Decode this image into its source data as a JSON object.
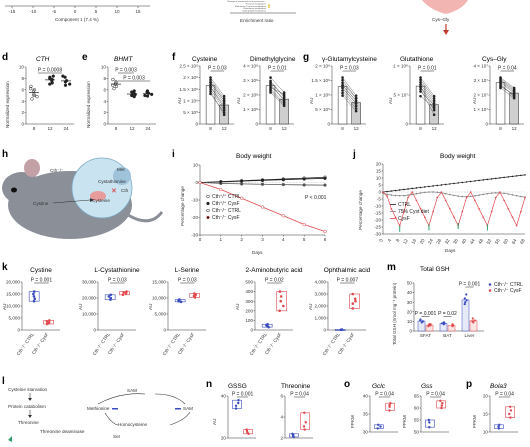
{
  "figure": {
    "top_strip": {
      "component_ticks": [
        "-15",
        "-10",
        "-5",
        "0",
        "5",
        "10",
        "15"
      ],
      "component_label": "Component 1 (7.4 %)",
      "pathways": [
        "Neomycin, kanamycin and gentamicin...",
        "Fructose metabolism",
        "Methionine 2-amino metabolism",
        "Glutathione metabolism",
        "Sphingolipid metabolism"
      ],
      "enrichment_label": "Enrichment ratio",
      "cys_gly_label": "Cys–Gly"
    },
    "panels": {
      "d": {
        "label": "d",
        "title": "CTH",
        "ylabel": "Normalized expression",
        "p": "P = 0.0008",
        "x": [
          "8",
          "12",
          "24"
        ],
        "yticks": [
          "0",
          "2",
          "4",
          "6",
          "8",
          "10"
        ]
      },
      "e": {
        "label": "e",
        "title": "BHMT",
        "ylabel": "Normalized expression",
        "p1": "P = 0.003",
        "p2": "P = 0.003",
        "x": [
          "8",
          "12",
          "24"
        ],
        "yticks": [
          "0",
          "2",
          "4",
          "6",
          "8",
          "10"
        ]
      },
      "f": {
        "label": "f",
        "t1": "Cysteine",
        "p1": "P = 0.03",
        "t2": "Dimethylglycine",
        "p2": "P = 0.01",
        "ylabel": "AU",
        "x": [
          "8",
          "12"
        ],
        "yt1": [
          "0",
          "5 × 10⁵",
          "1 × 10⁶",
          "1.5 × 10⁶",
          "2 × 10⁶",
          "2.5 × 10⁶"
        ],
        "yt2": [
          "0",
          "1 × 10⁸",
          "2 × 10⁸",
          "3 × 10⁸",
          "4 × 10⁸"
        ]
      },
      "g": {
        "label": "g",
        "t1": "γ-Glutamylcysteine",
        "p1": "P = 0.03",
        "t2": "Glutathione",
        "p2": "P = 0.01",
        "t3": "Cys–Gly",
        "p3": "P = 0.04",
        "ylabel": "AU",
        "x": [
          "8",
          "12"
        ],
        "yt1": [
          "0",
          "5 × 10⁵",
          "1 × 10⁶",
          "1.5 × 10⁶",
          "2 × 10⁶"
        ],
        "yt2": [
          "0",
          "5 × 10⁷",
          "1 × 10⁸"
        ],
        "yt3": [
          "0",
          "1 × 10⁷",
          "2 × 10⁷",
          "3 × 10⁷",
          "4 × 10⁷"
        ]
      },
      "h": {
        "label": "h",
        "cth": "Cth⁻/⁻",
        "met": "Met",
        "cystathionine": "Cystathionine",
        "cth_x": "Cth",
        "cysteine": "Cysteine",
        "cystine": "Cystine"
      },
      "i": {
        "label": "i",
        "title": "Body weight",
        "ylabel": "Percentage change",
        "xlabel": "Days",
        "p": "P < 0.001",
        "xticks": [
          "0",
          "1",
          "2",
          "3",
          "4",
          "5",
          "6"
        ],
        "yticks": [
          "-30",
          "-20",
          "-10",
          "0",
          "10"
        ],
        "legend": [
          "Cth⁺/⁺ CTRL",
          "Cth⁺/⁺ CysF",
          "Cth⁻/⁻ CTRL",
          "Cth⁻/⁻ CysF"
        ]
      },
      "j": {
        "label": "j",
        "title": "Body weight",
        "ylabel": "Percentage change",
        "xlabel": "Days",
        "yticks": [
          "-30",
          "-25",
          "-20",
          "-15",
          "-10",
          "-5",
          "0",
          "5",
          "10",
          "15",
          "20"
        ],
        "xticks": [
          "0",
          "4",
          "8",
          "12",
          "16",
          "20",
          "24",
          "28",
          "32",
          "36",
          "40",
          "44",
          "48",
          "52",
          "56",
          "60",
          "64",
          "68"
        ],
        "legend": [
          "CTRL",
          "75% Cyst diet",
          "CysF"
        ]
      },
      "k": {
        "label": "k",
        "ylabel": "AU",
        "xlabels": [
          "Cth⁻/⁻ CTRL",
          "Cth⁻/⁻ CysF"
        ],
        "sub": [
          {
            "title": "Cystine",
            "p": "P = 0.001",
            "yticks": [
              "0",
              "5,000",
              "10,000",
              "15,000",
              "20,000"
            ]
          },
          {
            "title": "L-Cystathionine",
            "p": "P = 0.03",
            "yticks": [
              "0",
              "10,000",
              "20,000",
              "30,000"
            ]
          },
          {
            "title": "L-Serine",
            "p": "P = 0.03",
            "yticks": [
              "0",
              "5,000",
              "10,000",
              "15,000"
            ]
          },
          {
            "title": "2-Aminobutyric acid",
            "p": "P = 0.02",
            "yticks": [
              "0",
              "100",
              "200",
              "300",
              "400",
              "500"
            ]
          },
          {
            "title": "Ophthalmic acid",
            "p": "P = 0.007",
            "yticks": [
              "0",
              "1,000",
              "2,000",
              "3,000",
              "4,000"
            ]
          }
        ]
      },
      "m": {
        "label": "m",
        "title": "Total GSH",
        "ylabel": "Total GSH (nmol mg⁻¹ protein)",
        "p": [
          "P = 0.001",
          "P = 0.02",
          "P = 0.001"
        ],
        "groups": [
          "SFAT",
          "BAT",
          "Liver"
        ],
        "yticks": [
          "0",
          "10",
          "20",
          "30",
          "40",
          "50"
        ],
        "legend": [
          "Cth⁻/⁻ CTRL",
          "Cth⁻/⁻ CysF"
        ]
      },
      "l": {
        "label": "l",
        "starvation": "Cysteine starvation",
        "catabolism": "Protein catabolism",
        "threonine": "Threonine",
        "deaminase": "Threonine deaminase",
        "sam": "SAM",
        "methionine": "Methionine",
        "homocysteine": "Homocysteine",
        "ser": "Ser"
      },
      "n": {
        "label": "n",
        "t1": "GSSG",
        "p1": "P = 0.001",
        "t2": "Threonine",
        "p2": "P = 0.04",
        "ylabel": "AU",
        "yt1": [
          "20",
          "40"
        ],
        "yt2": [
          "6",
          "4",
          "2"
        ]
      },
      "o": {
        "label": "o",
        "t1": "Gclc",
        "p1": "P = 0.04",
        "t2": "Gss",
        "p2": "P = 0.04",
        "ylabel": "FPKM",
        "yt1": [
          "40",
          "35",
          "30"
        ],
        "yt2": [
          "65",
          "60",
          "55",
          "50"
        ]
      },
      "p": {
        "label": "p",
        "t1": "Bola3",
        "p1": "P = 0.04",
        "ylabel": "FPKM",
        "yt1": [
          "20",
          "15",
          "10"
        ]
      }
    },
    "colors": {
      "ctrl": "#3b4cc0",
      "cysf": "#e0484d",
      "black": "#222222",
      "gray": "#999999",
      "green": "#2e9e6b",
      "pink": "#f0a7a7"
    }
  }
}
